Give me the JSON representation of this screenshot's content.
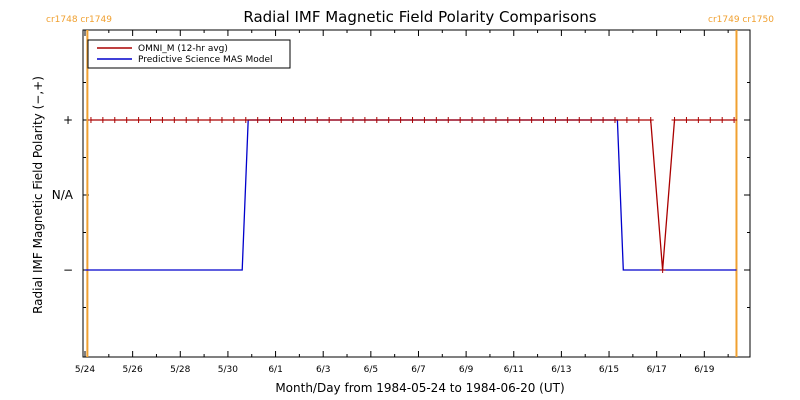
{
  "chart_data": {
    "type": "line",
    "title": "Radial IMF Magnetic Field Polarity Comparisons",
    "xlabel": "Month/Day from 1984-05-24 to 1984-06-20 (UT)",
    "ylabel": "Radial IMF Magnetic Field Polarity (−,+)",
    "x_tick_labels": [
      "5/24",
      "5/26",
      "5/28",
      "5/30",
      "6/1",
      "6/3",
      "6/5",
      "6/7",
      "6/9",
      "6/11",
      "6/13",
      "6/15",
      "6/17",
      "6/19"
    ],
    "y_tick_labels": [
      {
        "label": "+",
        "value": 1
      },
      {
        "label": "N/A",
        "value": 0
      },
      {
        "label": "−",
        "value": -1
      }
    ],
    "x_range_days": [
      0,
      27.5
    ],
    "ylim": [
      -1.5,
      1.5
    ],
    "carrington_markers": [
      {
        "label": "cr1748 cr1749",
        "day": 0.1,
        "side": "left"
      },
      {
        "label": "cr1749 cr1750",
        "day": 27.35,
        "side": "right"
      }
    ],
    "legend": {
      "placement": "top-left",
      "entries": [
        {
          "name": "OMNI_M (12-hr avg)",
          "color": "#aa0000"
        },
        {
          "name": "Predictive Science MAS Model",
          "color": "#0000cc"
        }
      ]
    },
    "series": [
      {
        "name": "OMNI_M (12-hr avg)",
        "color": "#aa0000",
        "marker": "plus",
        "x": [
          0.25,
          0.75,
          1.25,
          1.75,
          2.25,
          2.75,
          3.25,
          3.75,
          4.25,
          4.75,
          5.25,
          5.75,
          6.25,
          6.75,
          7.25,
          7.75,
          8.25,
          8.75,
          9.25,
          9.75,
          10.25,
          10.75,
          11.25,
          11.75,
          12.25,
          12.75,
          13.25,
          13.75,
          14.25,
          14.75,
          15.25,
          15.75,
          16.25,
          16.75,
          17.25,
          17.75,
          18.25,
          18.75,
          19.25,
          19.75,
          20.25,
          20.75,
          21.25,
          21.75,
          22.25,
          22.75,
          23.25,
          23.75,
          24.25,
          24.75,
          25.25,
          25.75,
          26.25,
          26.75,
          27.25
        ],
        "y": [
          1,
          1,
          1,
          1,
          1,
          1,
          1,
          1,
          1,
          1,
          1,
          1,
          1,
          1,
          1,
          1,
          1,
          1,
          1,
          1,
          1,
          1,
          1,
          1,
          1,
          1,
          1,
          1,
          1,
          1,
          1,
          1,
          1,
          1,
          1,
          1,
          1,
          1,
          1,
          1,
          1,
          1,
          1,
          1,
          1,
          1,
          1,
          1,
          -1,
          1,
          1,
          1,
          1,
          1,
          1
        ]
      },
      {
        "name": "Predictive Science MAS Model",
        "color": "#0000cc",
        "x": [
          0,
          6.6,
          6.85,
          22.35,
          22.6,
          27.35
        ],
        "y": [
          -1,
          -1,
          1,
          1,
          -1,
          -1
        ]
      }
    ]
  }
}
